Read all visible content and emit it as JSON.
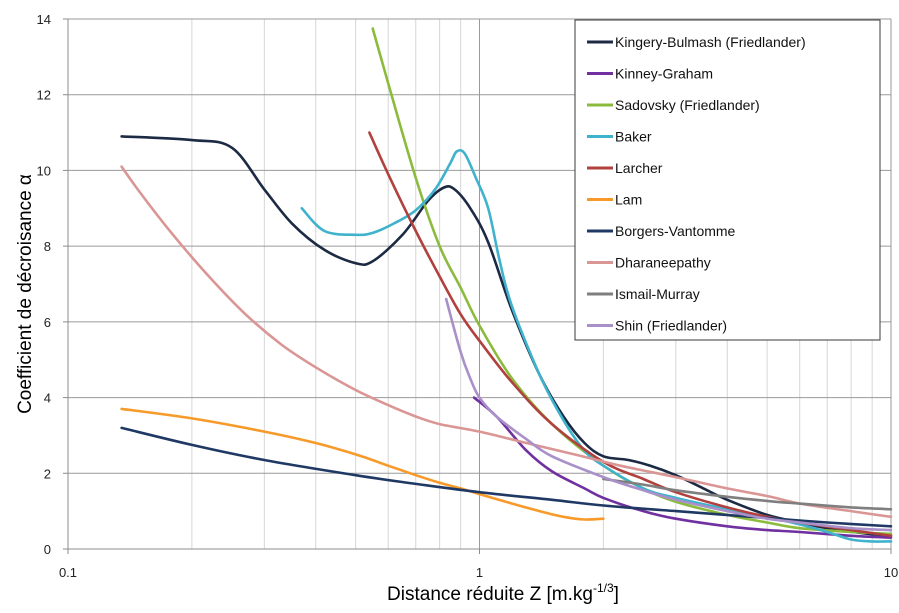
{
  "chart_data": {
    "type": "line",
    "title": "",
    "xlabel": "Distance réduite Z [m.kg",
    "xlabel_sup": "-1/3",
    "xlabel_end": "]",
    "ylabel": "Coefficient de décroisance α",
    "x_scale": "log",
    "xlim": [
      0.1,
      10
    ],
    "ylim": [
      0,
      14
    ],
    "x_ticks": [
      {
        "value": 0.1,
        "label": "0.1"
      },
      {
        "value": 1,
        "label": "1"
      },
      {
        "value": 10,
        "label": "10"
      }
    ],
    "y_ticks": [
      {
        "value": 0,
        "label": "0"
      },
      {
        "value": 2,
        "label": "2"
      },
      {
        "value": 4,
        "label": "4"
      },
      {
        "value": 6,
        "label": "6"
      },
      {
        "value": 8,
        "label": "8"
      },
      {
        "value": 10,
        "label": "10"
      },
      {
        "value": 12,
        "label": "12"
      },
      {
        "value": 14,
        "label": "14"
      }
    ],
    "grid": "major horizontal and log-minor vertical",
    "legend_position": "top-right",
    "series": [
      {
        "name": "Kingery-Bulmash (Friedlander)",
        "color": "#1c2a44",
        "points": [
          [
            0.135,
            10.9
          ],
          [
            0.2,
            10.8
          ],
          [
            0.25,
            10.6
          ],
          [
            0.3,
            9.5
          ],
          [
            0.35,
            8.6
          ],
          [
            0.42,
            7.9
          ],
          [
            0.5,
            7.55
          ],
          [
            0.55,
            7.6
          ],
          [
            0.65,
            8.3
          ],
          [
            0.75,
            9.2
          ],
          [
            0.82,
            9.55
          ],
          [
            0.87,
            9.5
          ],
          [
            0.95,
            9.0
          ],
          [
            1.05,
            8.1
          ],
          [
            1.2,
            6.3
          ],
          [
            1.4,
            4.6
          ],
          [
            1.6,
            3.5
          ],
          [
            1.8,
            2.8
          ],
          [
            2.0,
            2.45
          ],
          [
            2.3,
            2.35
          ],
          [
            2.6,
            2.2
          ],
          [
            3.0,
            1.95
          ],
          [
            3.5,
            1.6
          ],
          [
            4.0,
            1.3
          ],
          [
            5.0,
            0.9
          ],
          [
            6.0,
            0.7
          ],
          [
            7.0,
            0.55
          ],
          [
            8.5,
            0.42
          ],
          [
            10.0,
            0.35
          ]
        ]
      },
      {
        "name": "Kinney-Graham",
        "color": "#7030a0",
        "points": [
          [
            0.97,
            4.0
          ],
          [
            1.1,
            3.5
          ],
          [
            1.3,
            2.6
          ],
          [
            1.5,
            2.05
          ],
          [
            1.8,
            1.6
          ],
          [
            2.0,
            1.35
          ],
          [
            2.5,
            1.0
          ],
          [
            3.0,
            0.8
          ],
          [
            4.0,
            0.6
          ],
          [
            5.0,
            0.5
          ],
          [
            6.0,
            0.45
          ],
          [
            8.0,
            0.35
          ],
          [
            10.0,
            0.3
          ]
        ]
      },
      {
        "name": "Sadovsky (Friedlander)",
        "color": "#8bbb3d",
        "points": [
          [
            0.55,
            13.75
          ],
          [
            0.6,
            12.3
          ],
          [
            0.7,
            9.8
          ],
          [
            0.8,
            8.0
          ],
          [
            0.9,
            6.9
          ],
          [
            1.0,
            5.9
          ],
          [
            1.2,
            4.5
          ],
          [
            1.5,
            3.3
          ],
          [
            2.0,
            2.2
          ],
          [
            2.5,
            1.6
          ],
          [
            3.0,
            1.25
          ],
          [
            4.0,
            0.9
          ],
          [
            5.0,
            0.7
          ],
          [
            6.0,
            0.55
          ],
          [
            8.0,
            0.45
          ],
          [
            10.0,
            0.4
          ]
        ]
      },
      {
        "name": "Baker",
        "color": "#3fb2cc",
        "points": [
          [
            0.37,
            9.0
          ],
          [
            0.42,
            8.4
          ],
          [
            0.5,
            8.3
          ],
          [
            0.55,
            8.35
          ],
          [
            0.62,
            8.6
          ],
          [
            0.7,
            8.95
          ],
          [
            0.78,
            9.5
          ],
          [
            0.85,
            10.2
          ],
          [
            0.88,
            10.5
          ],
          [
            0.92,
            10.45
          ],
          [
            0.98,
            9.8
          ],
          [
            1.05,
            9.0
          ],
          [
            1.12,
            7.6
          ],
          [
            1.2,
            6.4
          ],
          [
            1.4,
            4.6
          ],
          [
            1.6,
            3.4
          ],
          [
            1.8,
            2.6
          ],
          [
            2.0,
            2.2
          ],
          [
            2.5,
            1.6
          ],
          [
            3.0,
            1.35
          ],
          [
            4.0,
            1.05
          ],
          [
            5.0,
            0.85
          ],
          [
            6.0,
            0.65
          ],
          [
            7.0,
            0.45
          ],
          [
            8.0,
            0.25
          ],
          [
            9.0,
            0.2
          ],
          [
            10.0,
            0.2
          ]
        ]
      },
      {
        "name": "Larcher",
        "color": "#b0413e",
        "points": [
          [
            0.54,
            11.0
          ],
          [
            0.6,
            9.9
          ],
          [
            0.7,
            8.4
          ],
          [
            0.8,
            7.2
          ],
          [
            0.9,
            6.2
          ],
          [
            1.0,
            5.5
          ],
          [
            1.2,
            4.4
          ],
          [
            1.5,
            3.3
          ],
          [
            2.0,
            2.3
          ],
          [
            2.5,
            1.85
          ],
          [
            3.0,
            1.5
          ],
          [
            4.0,
            1.1
          ],
          [
            5.0,
            0.85
          ],
          [
            6.0,
            0.7
          ],
          [
            8.0,
            0.5
          ],
          [
            10.0,
            0.35
          ]
        ]
      },
      {
        "name": "Lam",
        "color": "#f79a2a",
        "points": [
          [
            0.135,
            3.7
          ],
          [
            0.2,
            3.45
          ],
          [
            0.3,
            3.1
          ],
          [
            0.4,
            2.8
          ],
          [
            0.5,
            2.5
          ],
          [
            0.6,
            2.2
          ],
          [
            0.7,
            1.95
          ],
          [
            0.8,
            1.75
          ],
          [
            0.9,
            1.6
          ],
          [
            1.0,
            1.45
          ],
          [
            1.2,
            1.2
          ],
          [
            1.4,
            1.0
          ],
          [
            1.6,
            0.85
          ],
          [
            1.8,
            0.78
          ],
          [
            2.0,
            0.8
          ]
        ]
      },
      {
        "name": "Borgers-Vantomme",
        "color": "#1f3864",
        "points": [
          [
            0.135,
            3.2
          ],
          [
            0.2,
            2.75
          ],
          [
            0.3,
            2.35
          ],
          [
            0.5,
            1.95
          ],
          [
            0.7,
            1.72
          ],
          [
            1.0,
            1.5
          ],
          [
            1.5,
            1.3
          ],
          [
            2.0,
            1.15
          ],
          [
            3.0,
            1.0
          ],
          [
            5.0,
            0.82
          ],
          [
            7.0,
            0.7
          ],
          [
            10.0,
            0.6
          ]
        ]
      },
      {
        "name": "Dharaneepathy",
        "color": "#d99694",
        "points": [
          [
            0.135,
            10.1
          ],
          [
            0.15,
            9.4
          ],
          [
            0.18,
            8.3
          ],
          [
            0.22,
            7.2
          ],
          [
            0.27,
            6.2
          ],
          [
            0.33,
            5.4
          ],
          [
            0.4,
            4.8
          ],
          [
            0.5,
            4.2
          ],
          [
            0.6,
            3.8
          ],
          [
            0.7,
            3.5
          ],
          [
            0.8,
            3.3
          ],
          [
            1.0,
            3.1
          ],
          [
            1.3,
            2.8
          ],
          [
            1.7,
            2.5
          ],
          [
            2.2,
            2.2
          ],
          [
            3.0,
            1.9
          ],
          [
            4.0,
            1.6
          ],
          [
            5.0,
            1.4
          ],
          [
            6.0,
            1.2
          ],
          [
            8.0,
            1.0
          ],
          [
            10.0,
            0.85
          ]
        ]
      },
      {
        "name": "Ismail-Murray",
        "color": "#7f7f7f",
        "points": [
          [
            2.0,
            1.85
          ],
          [
            2.5,
            1.7
          ],
          [
            3.0,
            1.55
          ],
          [
            4.0,
            1.38
          ],
          [
            5.0,
            1.27
          ],
          [
            6.0,
            1.2
          ],
          [
            8.0,
            1.1
          ],
          [
            10.0,
            1.05
          ]
        ]
      },
      {
        "name": "Shin (Friedlander)",
        "color": "#a990c9",
        "points": [
          [
            0.83,
            6.6
          ],
          [
            0.9,
            5.2
          ],
          [
            0.95,
            4.5
          ],
          [
            1.0,
            4.0
          ],
          [
            1.1,
            3.5
          ],
          [
            1.3,
            2.9
          ],
          [
            1.5,
            2.45
          ],
          [
            2.0,
            1.9
          ],
          [
            2.5,
            1.55
          ],
          [
            3.0,
            1.3
          ],
          [
            4.0,
            1.0
          ],
          [
            5.0,
            0.8
          ],
          [
            6.0,
            0.7
          ],
          [
            8.0,
            0.55
          ],
          [
            10.0,
            0.5
          ]
        ]
      }
    ]
  }
}
